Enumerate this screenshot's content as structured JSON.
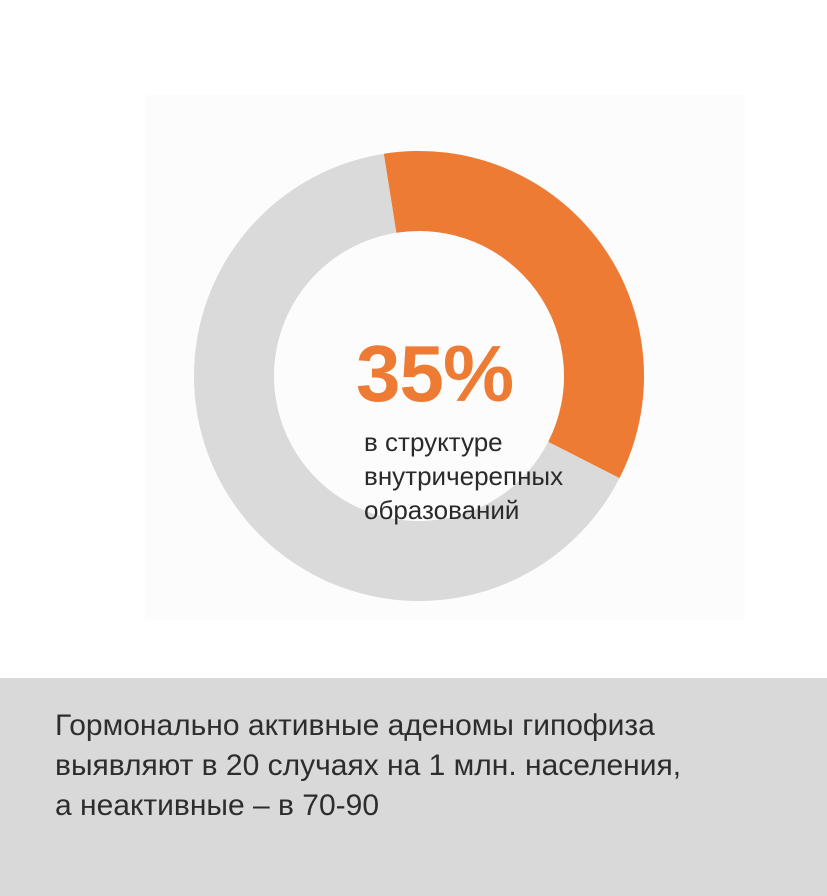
{
  "chart_data": {
    "type": "pie",
    "style": "donut",
    "slices": [
      {
        "label": "в структуре внутричерепных образований",
        "value": 35,
        "color": "#ee7b33"
      },
      {
        "label": "",
        "value": 65,
        "color": "#dadada"
      }
    ],
    "center_value": "35%",
    "center_caption_lines": [
      "в структуре",
      "внутричерепных",
      "образований"
    ]
  },
  "footer": {
    "lines": [
      "Гормонально активные аденомы гипофиза",
      "выявляют в 20 случаях на 1 млн. населения,",
      "а неактивные – в 70-90"
    ]
  },
  "colors": {
    "accent": "#ee7b33",
    "ring_track": "#dadada",
    "footer_bg": "#d9d9d9"
  }
}
